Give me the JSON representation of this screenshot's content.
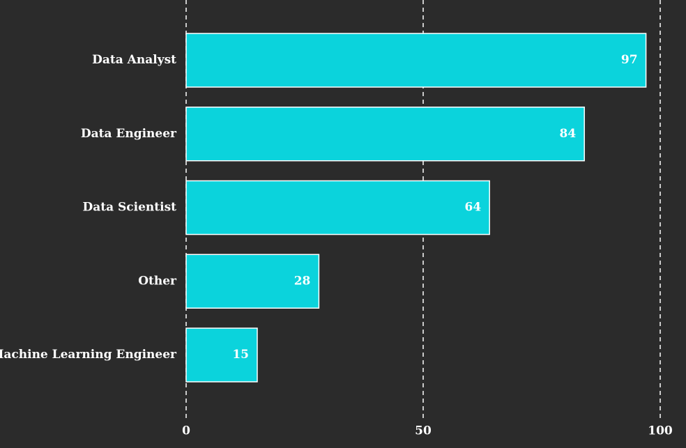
{
  "chart_data": {
    "type": "bar",
    "orientation": "horizontal",
    "categories": [
      "Data Analyst",
      "Data Engineer",
      "Data Scientist",
      "Other",
      "Machine Learning Engineer"
    ],
    "values": [
      97,
      84,
      64,
      28,
      15
    ],
    "data_labels": [
      "97",
      "84",
      "64",
      "28",
      "15"
    ],
    "xlim": [
      0,
      100
    ],
    "x_ticks": [
      0,
      50,
      100
    ],
    "x_tick_labels": [
      "0",
      "50",
      "100"
    ],
    "grid": "vertical dashed",
    "colors": {
      "background": "#2b2b2b",
      "bar": "#0bd3dc",
      "bar_edge": "#ffffff",
      "text": "#ffffff",
      "grid": "#ffffff"
    }
  }
}
